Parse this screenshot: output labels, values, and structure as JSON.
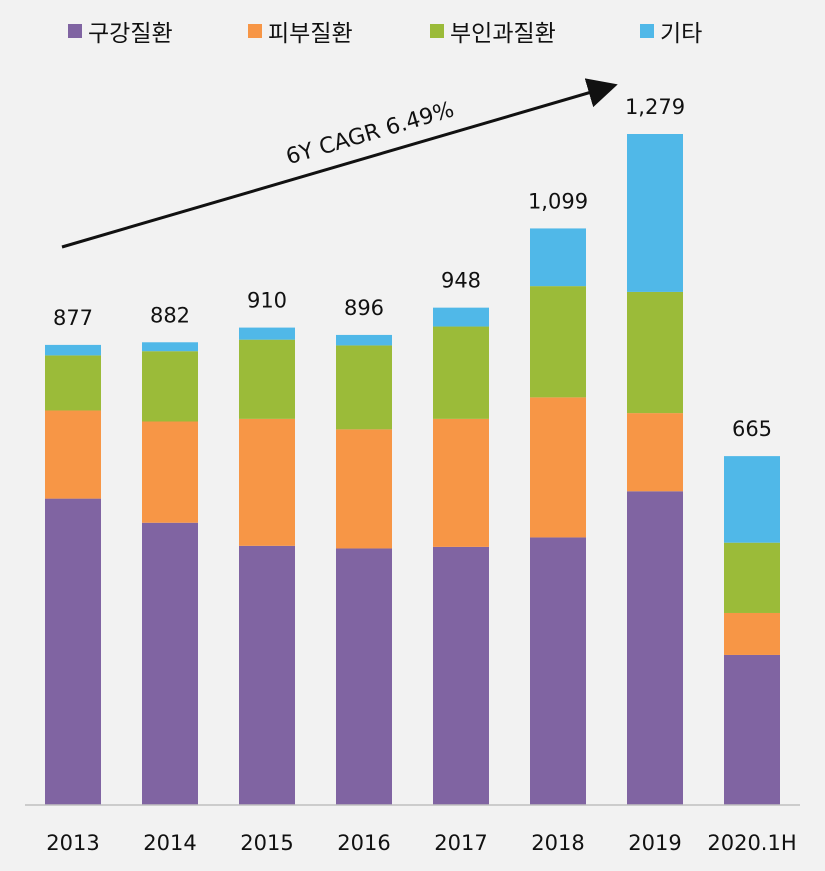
{
  "chart_data": {
    "type": "bar",
    "stacked": true,
    "categories": [
      "2013",
      "2014",
      "2015",
      "2016",
      "2017",
      "2018",
      "2019",
      "2020.1H"
    ],
    "totals": [
      "877",
      "882",
      "910",
      "896",
      "948",
      "1,099",
      "1,279",
      "665"
    ],
    "total_values": [
      877,
      882,
      910,
      896,
      948,
      1099,
      1279,
      665
    ],
    "series": [
      {
        "name": "구강질환",
        "color": "#8064a2",
        "values": [
          584,
          538,
          494,
          489,
          492,
          510,
          598,
          286
        ]
      },
      {
        "name": "피부질환",
        "color": "#f79646",
        "values": [
          168,
          193,
          242,
          227,
          244,
          267,
          149,
          80
        ]
      },
      {
        "name": "부인과질환",
        "color": "#9bbb39",
        "values": [
          105,
          134,
          151,
          160,
          176,
          212,
          231,
          134
        ]
      },
      {
        "name": "기타",
        "color": "#50b8e8",
        "values": [
          20,
          17,
          23,
          20,
          36,
          110,
          301,
          165
        ]
      }
    ],
    "annotation": "6Y CAGR 6.49%",
    "ylim": [
      0,
      1300
    ],
    "legend": "top",
    "grid": false
  }
}
